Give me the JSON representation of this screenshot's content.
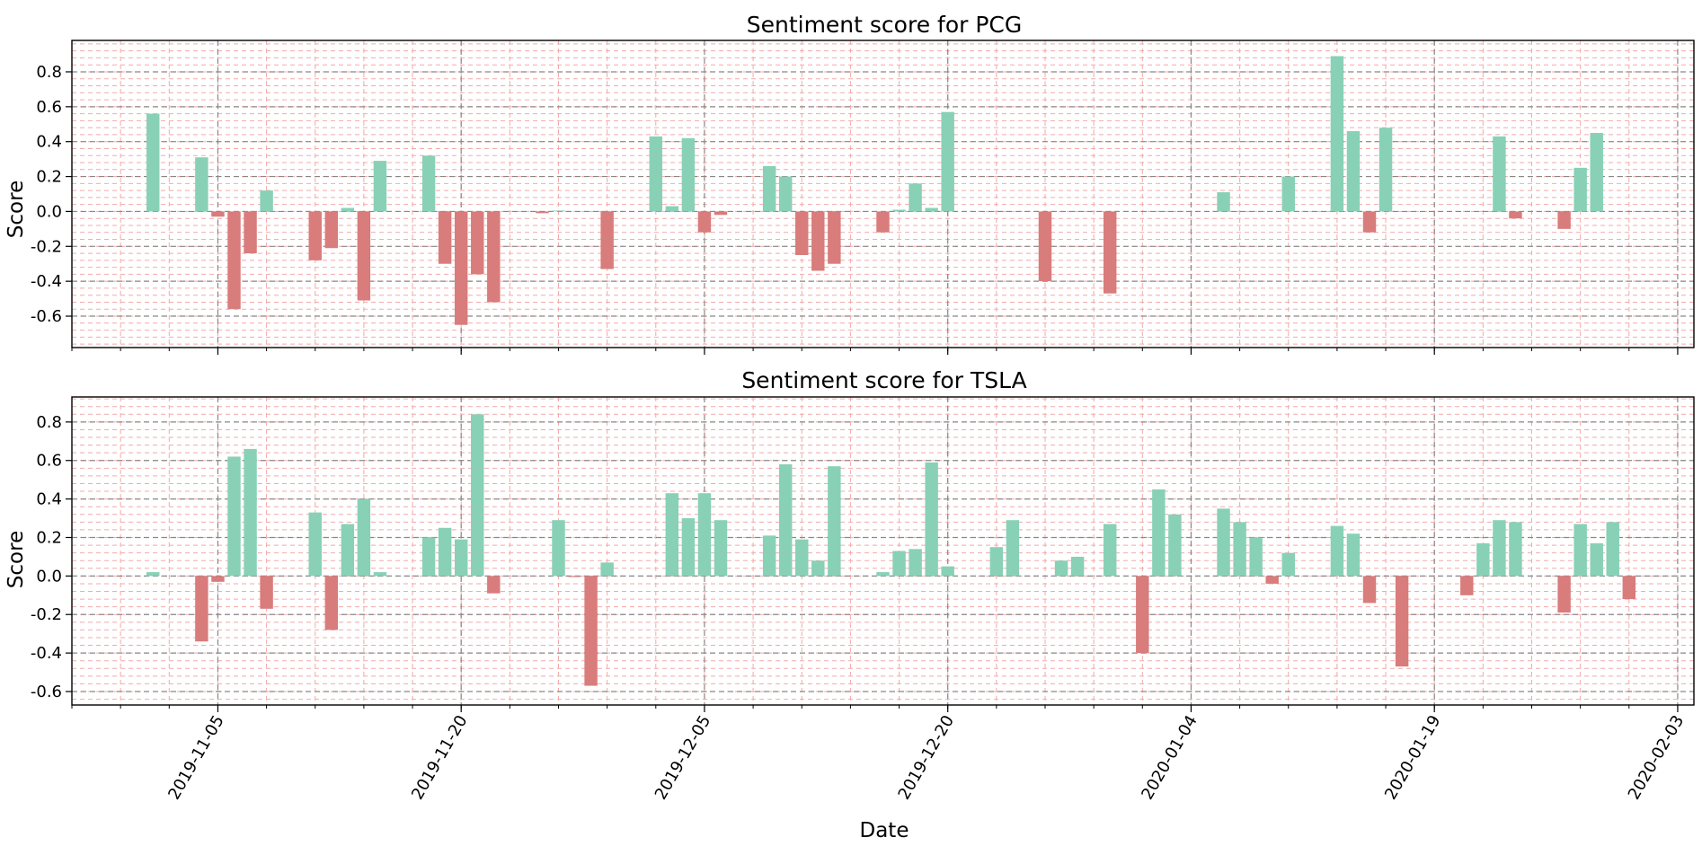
{
  "figure": {
    "xlabel": "Date",
    "date_start": "2019-10-27",
    "date_end": "2020-02-04",
    "x_ticks": [
      "2019-11-05",
      "2019-11-20",
      "2019-12-05",
      "2019-12-20",
      "2020-01-04",
      "2020-01-19",
      "2020-02-03"
    ]
  },
  "colors": {
    "positive": "#88d1b7",
    "negative": "#d97c7c",
    "major_grid": "#888888",
    "minor_grid": "#f4a9a9",
    "axis": "#000000"
  },
  "chart_data": [
    {
      "type": "bar",
      "title": "Sentiment score for PCG",
      "ticker": "PCG",
      "xlabel": "",
      "ylabel": "Score",
      "ylim": [
        -0.78,
        0.98
      ],
      "yticks": [
        "-0.6",
        "-0.4",
        "-0.2",
        "0.0",
        "0.2",
        "0.4",
        "0.6",
        "0.8"
      ],
      "dates": [
        "2019-11-01",
        "2019-11-04",
        "2019-11-05",
        "2019-11-06",
        "2019-11-07",
        "2019-11-08",
        "2019-11-11",
        "2019-11-12",
        "2019-11-13",
        "2019-11-14",
        "2019-11-15",
        "2019-11-18",
        "2019-11-19",
        "2019-11-20",
        "2019-11-21",
        "2019-11-22",
        "2019-11-25",
        "2019-11-26",
        "2019-11-29",
        "2019-12-02",
        "2019-12-03",
        "2019-12-04",
        "2019-12-05",
        "2019-12-06",
        "2019-12-09",
        "2019-12-10",
        "2019-12-11",
        "2019-12-12",
        "2019-12-13",
        "2019-12-16",
        "2019-12-17",
        "2019-12-18",
        "2019-12-19",
        "2019-12-20",
        "2019-12-26",
        "2019-12-30",
        "2020-01-06",
        "2020-01-10",
        "2020-01-13",
        "2020-01-14",
        "2020-01-15",
        "2020-01-16",
        "2020-01-23",
        "2020-01-24",
        "2020-01-27",
        "2020-01-28",
        "2020-01-29"
      ],
      "values": [
        0.56,
        0.31,
        -0.03,
        -0.56,
        -0.24,
        0.12,
        -0.28,
        -0.21,
        0.02,
        -0.51,
        0.29,
        0.32,
        -0.3,
        -0.65,
        -0.36,
        -0.52,
        -0.01,
        0.005,
        -0.33,
        0.43,
        0.03,
        0.42,
        -0.12,
        -0.02,
        0.26,
        0.2,
        -0.25,
        -0.34,
        -0.3,
        -0.12,
        0.01,
        0.16,
        0.02,
        0.57,
        -0.4,
        -0.47,
        0.11,
        0.2,
        0.89,
        0.46,
        -0.12,
        0.48,
        0.43,
        -0.04,
        -0.1,
        0.25,
        0.45
      ]
    },
    {
      "type": "bar",
      "title": "Sentiment score for TSLA",
      "ticker": "TSLA",
      "xlabel": "Date",
      "ylabel": "Score",
      "ylim": [
        -0.67,
        0.93
      ],
      "yticks": [
        "-0.6",
        "-0.4",
        "-0.2",
        "0.0",
        "0.2",
        "0.4",
        "0.6",
        "0.8"
      ],
      "dates": [
        "2019-11-01",
        "2019-11-04",
        "2019-11-05",
        "2019-11-06",
        "2019-11-07",
        "2019-11-08",
        "2019-11-11",
        "2019-11-12",
        "2019-11-13",
        "2019-11-14",
        "2019-11-15",
        "2019-11-18",
        "2019-11-19",
        "2019-11-20",
        "2019-11-21",
        "2019-11-22",
        "2019-11-26",
        "2019-11-27",
        "2019-11-28",
        "2019-11-29",
        "2019-12-03",
        "2019-12-04",
        "2019-12-05",
        "2019-12-06",
        "2019-12-09",
        "2019-12-10",
        "2019-12-11",
        "2019-12-12",
        "2019-12-13",
        "2019-12-16",
        "2019-12-17",
        "2019-12-18",
        "2019-12-19",
        "2019-12-20",
        "2019-12-23",
        "2019-12-24",
        "2019-12-27",
        "2019-12-28",
        "2019-12-30",
        "2020-01-01",
        "2020-01-02",
        "2020-01-03",
        "2020-01-06",
        "2020-01-07",
        "2020-01-08",
        "2020-01-09",
        "2020-01-10",
        "2020-01-13",
        "2020-01-14",
        "2020-01-15",
        "2020-01-17",
        "2020-01-21",
        "2020-01-22",
        "2020-01-23",
        "2020-01-24",
        "2020-01-27",
        "2020-01-28",
        "2020-01-29",
        "2020-01-30",
        "2020-01-31"
      ],
      "values": [
        0.02,
        -0.34,
        -0.03,
        0.62,
        0.66,
        -0.17,
        0.33,
        -0.28,
        0.27,
        0.4,
        0.02,
        0.2,
        0.25,
        0.19,
        0.84,
        -0.09,
        0.29,
        -0.005,
        -0.57,
        0.07,
        0.43,
        0.3,
        0.43,
        0.29,
        0.21,
        0.58,
        0.19,
        0.08,
        0.57,
        0.02,
        0.13,
        0.14,
        0.59,
        0.05,
        0.15,
        0.29,
        0.08,
        0.1,
        0.27,
        -0.4,
        0.45,
        0.32,
        0.35,
        0.28,
        0.2,
        -0.04,
        0.12,
        0.26,
        0.22,
        -0.14,
        -0.47,
        -0.1,
        0.17,
        0.29,
        0.28,
        -0.19,
        0.27,
        0.17,
        0.28,
        -0.12
      ]
    }
  ]
}
